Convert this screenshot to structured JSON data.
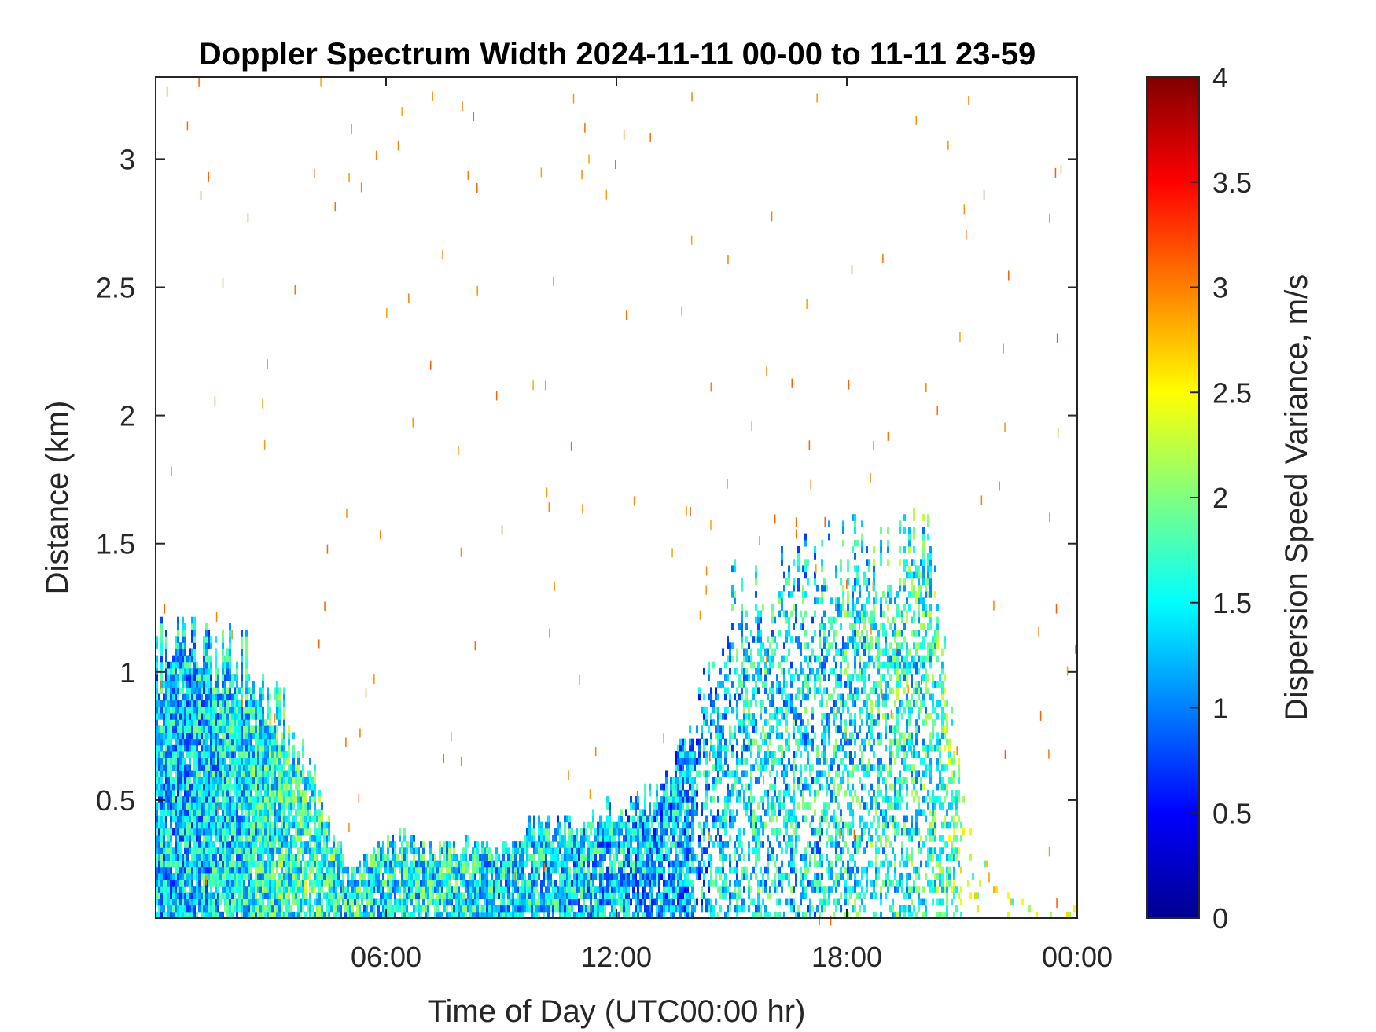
{
  "chart_data": {
    "type": "heatmap",
    "title": "Doppler Spectrum Width 2024-11-11 00-00 to 11-11 23-59",
    "xlabel": "Time of Day (UTC00:00 hr)",
    "ylabel": "Distance (km)",
    "xlim_hours": [
      0,
      24
    ],
    "ylim": [
      0.04,
      3.32
    ],
    "x_ticks": [
      {
        "value": 6,
        "label": "06:00"
      },
      {
        "value": 12,
        "label": "12:00"
      },
      {
        "value": 18,
        "label": "18:00"
      },
      {
        "value": 24,
        "label": "00:00"
      }
    ],
    "y_ticks": [
      {
        "value": 0.5,
        "label": "0.5"
      },
      {
        "value": 1,
        "label": "1"
      },
      {
        "value": 1.5,
        "label": "1.5"
      },
      {
        "value": 2,
        "label": "2"
      },
      {
        "value": 2.5,
        "label": "2.5"
      },
      {
        "value": 3,
        "label": "3"
      }
    ],
    "grid": false,
    "colorbar": {
      "label": "Dispersion Speed Variance, m/s",
      "colormap": "jet",
      "range": [
        0,
        4
      ],
      "ticks": [
        {
          "value": 0,
          "label": "0"
        },
        {
          "value": 0.5,
          "label": "0.5"
        },
        {
          "value": 1,
          "label": "1"
        },
        {
          "value": 1.5,
          "label": "1.5"
        },
        {
          "value": 2,
          "label": "2"
        },
        {
          "value": 2.5,
          "label": "2.5"
        },
        {
          "value": 3,
          "label": "3"
        },
        {
          "value": 3.5,
          "label": "3.5"
        },
        {
          "value": 4,
          "label": "4"
        }
      ]
    },
    "echo_top_km_by_hour": [
      1.07,
      1.07,
      1.05,
      0.9,
      0.6,
      0.2,
      0.35,
      0.3,
      0.3,
      0.3,
      0.4,
      0.38,
      0.45,
      0.5,
      0.8,
      1.3,
      1.25,
      1.4,
      1.45,
      1.35,
      1.55,
      0.45,
      0.12,
      0.06
    ],
    "typical_value_by_hour": [
      1.3,
      1.3,
      1.4,
      1.6,
      1.7,
      1.5,
      1.5,
      1.5,
      1.5,
      1.4,
      1.4,
      1.3,
      1.3,
      1.2,
      1.2,
      1.4,
      1.5,
      1.4,
      1.5,
      1.6,
      1.6,
      2.0,
      2.2,
      2.2
    ],
    "sparse_noise_value": 3.0
  }
}
